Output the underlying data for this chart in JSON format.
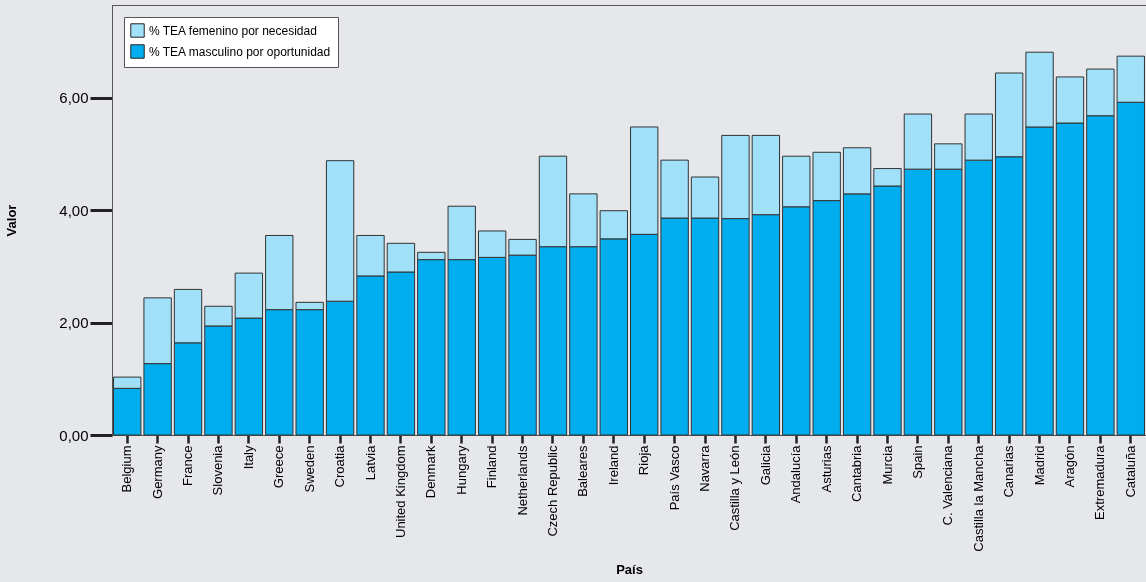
{
  "chart_data": {
    "type": "bar",
    "stacked": true,
    "xlabel": "País",
    "ylabel": "Valor",
    "legend": "top left",
    "categories": [
      "Belgium",
      "Germany",
      "France",
      "Slovenia",
      "Italy",
      "Greece",
      "Sweden",
      "Croatia",
      "Latvia",
      "United Kingdom",
      "Denmark",
      "Hungary",
      "Finland",
      "Netherlands",
      "Czech Republic",
      "Baleares",
      "Ireland",
      "Rioja",
      "País Vasco",
      "Navarra",
      "Castilla y León",
      "Galicia",
      "Andalucía",
      "Asturias",
      "Cantabria",
      "Murcia",
      "Spain",
      "C. Valenciana",
      "Castilla la Mancha",
      "Canarias",
      "Madrid",
      "Aragón",
      "Extremadura",
      "Cataluña"
    ],
    "series": [
      {
        "name": "% TEA masculino por oportunidad",
        "color": "#00aeef",
        "values": [
          0.83,
          1.27,
          1.64,
          1.94,
          2.08,
          2.23,
          2.23,
          2.38,
          2.83,
          2.9,
          3.12,
          3.12,
          3.16,
          3.2,
          3.35,
          3.35,
          3.49,
          3.57,
          3.86,
          3.86,
          3.85,
          3.92,
          4.06,
          4.17,
          4.29,
          4.43,
          4.73,
          4.73,
          4.89,
          4.95,
          5.48,
          5.55,
          5.68,
          5.92
        ]
      },
      {
        "name": "% TEA femenino por necesidad",
        "color": "#a0e0f8",
        "values": [
          0.2,
          1.17,
          0.95,
          0.35,
          0.8,
          1.32,
          0.13,
          2.5,
          0.72,
          0.51,
          0.13,
          0.95,
          0.47,
          0.28,
          1.61,
          0.94,
          0.5,
          1.91,
          1.03,
          0.73,
          1.48,
          1.41,
          0.9,
          0.86,
          0.82,
          0.31,
          0.98,
          0.45,
          0.82,
          1.49,
          1.33,
          0.82,
          0.83,
          0.82
        ]
      }
    ],
    "ylim": [
      0,
      7.65
    ],
    "yticks": [
      {
        "value": 0,
        "label": "0,00"
      },
      {
        "value": 2,
        "label": "2,00"
      },
      {
        "value": 4,
        "label": "4,00"
      },
      {
        "value": 6,
        "label": "6,00"
      }
    ],
    "grid": false
  }
}
